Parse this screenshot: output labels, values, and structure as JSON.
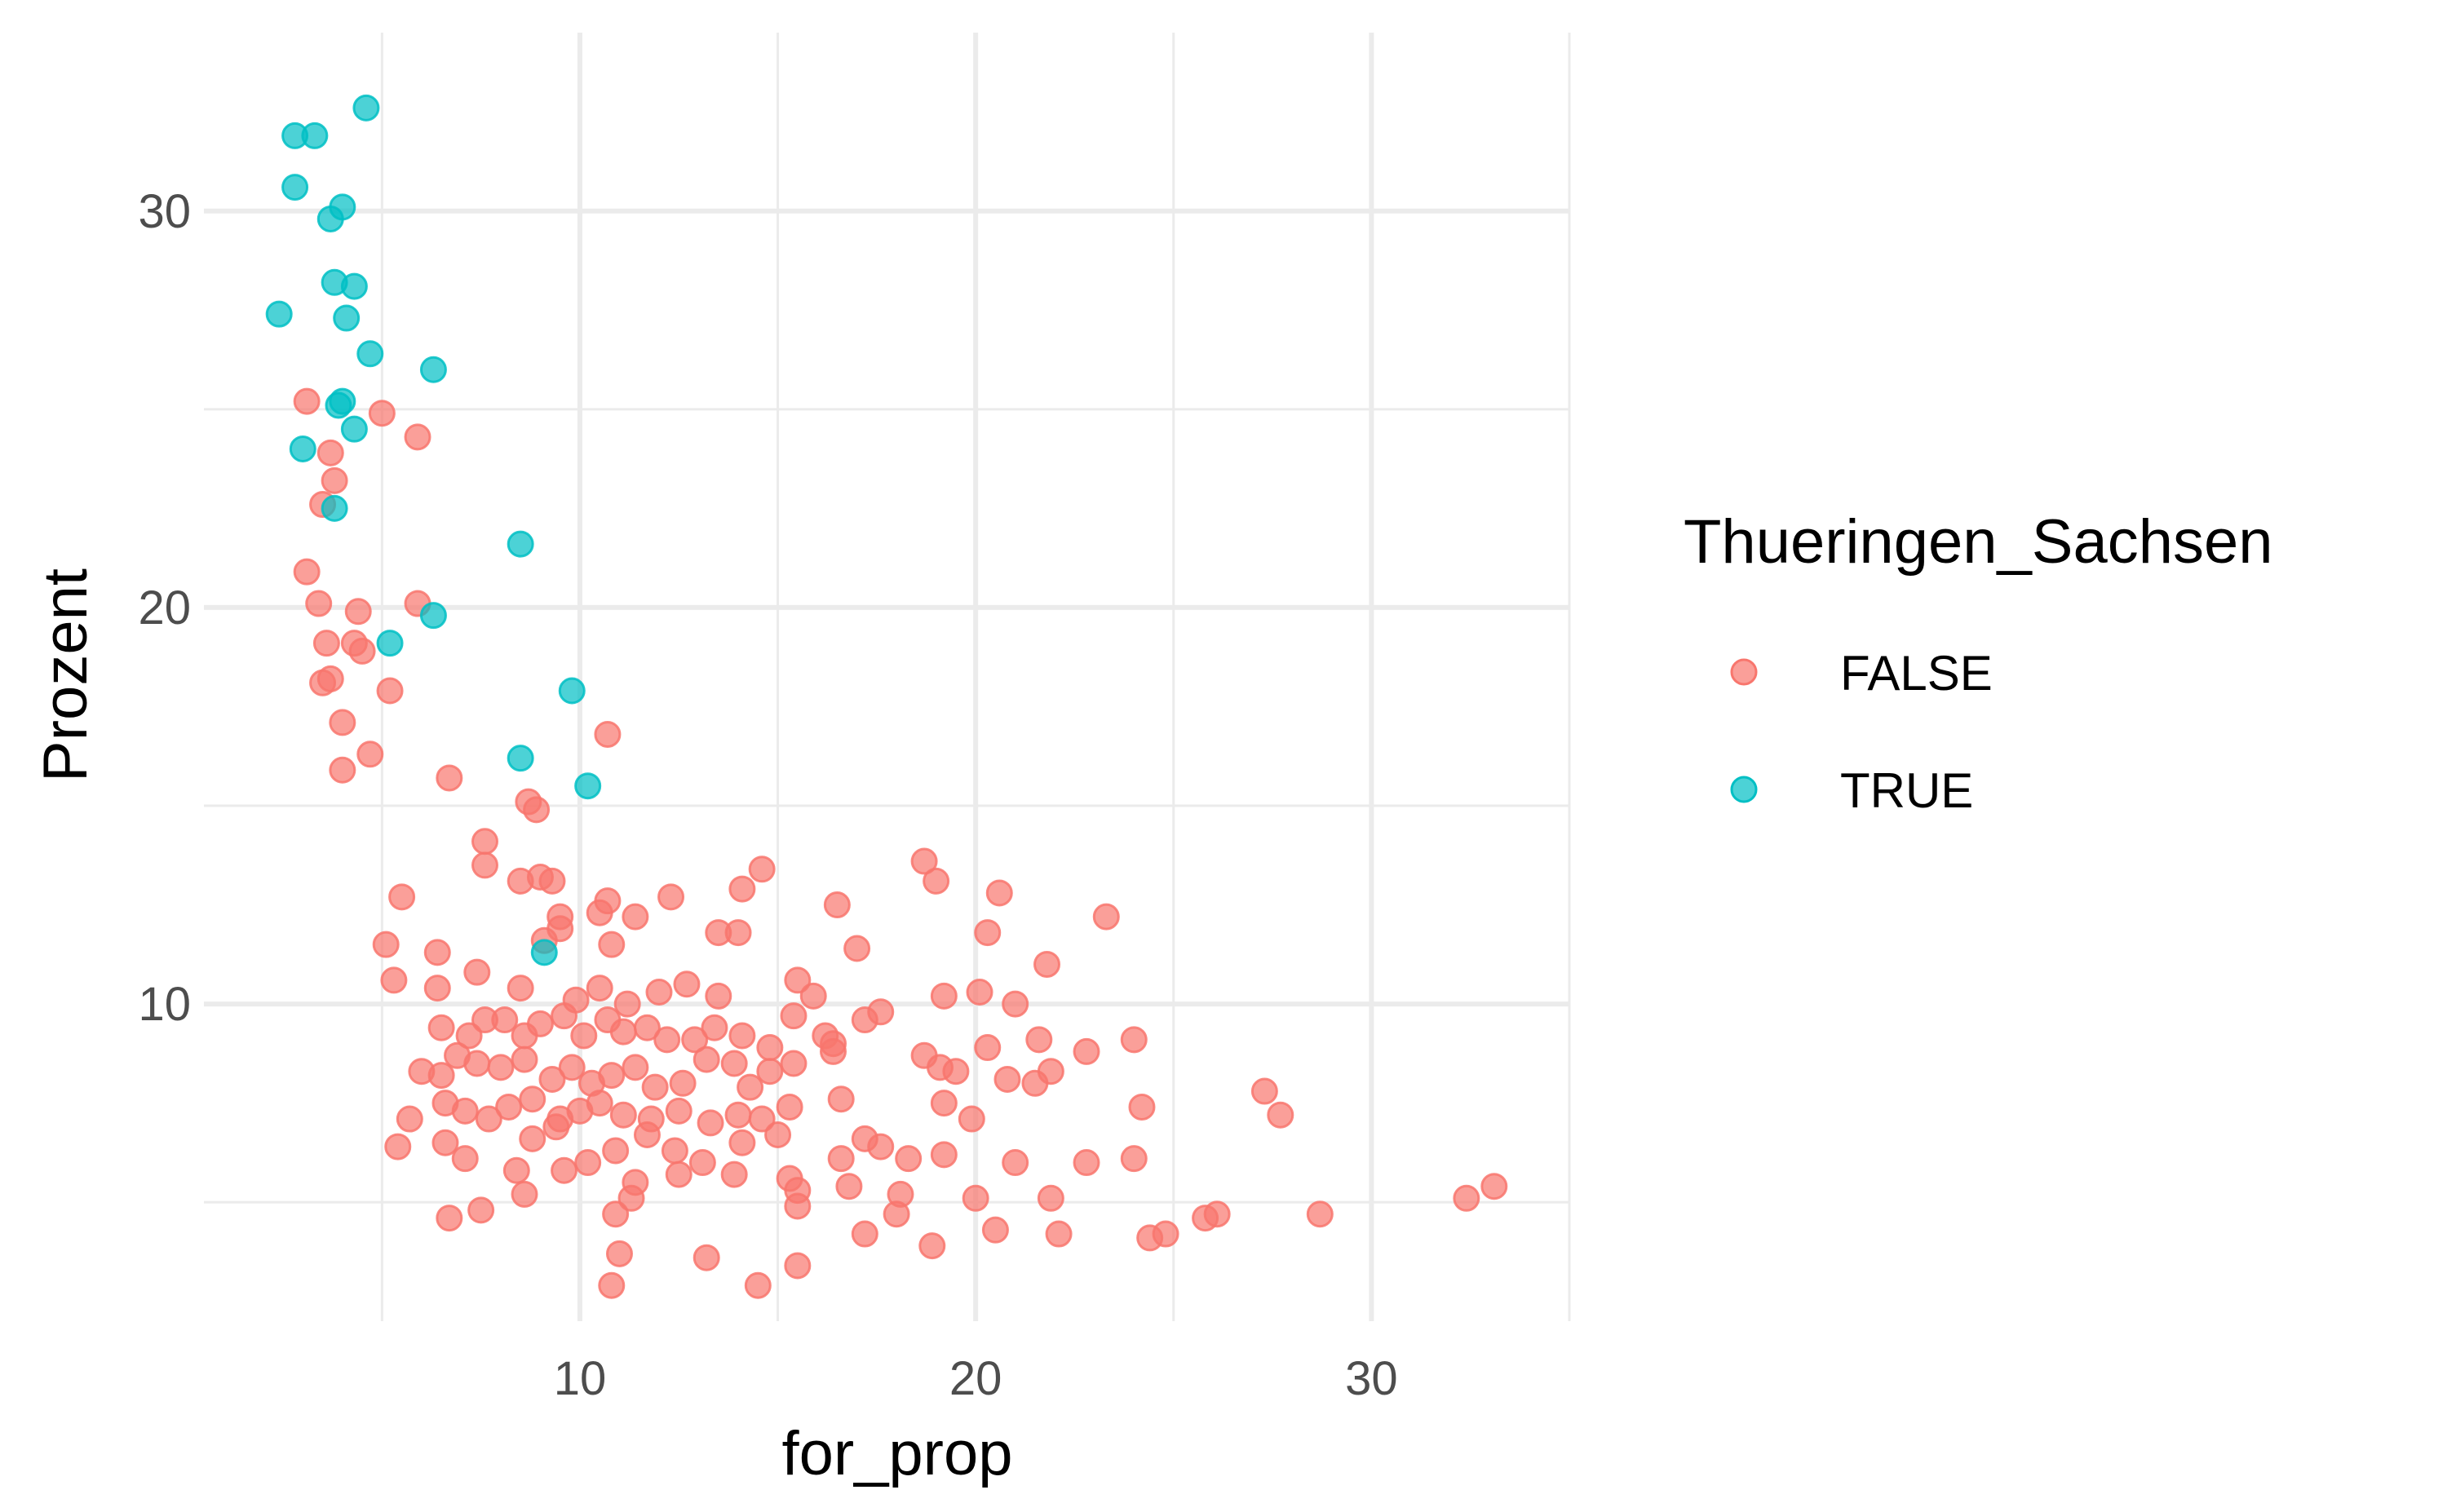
{
  "chart_data": {
    "type": "scatter",
    "xlabel": "for_prop",
    "ylabel": "Prozent",
    "xlim": [
      0.5,
      35
    ],
    "ylim": [
      2,
      34.5
    ],
    "x_ticks": [
      10,
      20,
      30
    ],
    "y_ticks": [
      10,
      20,
      30
    ],
    "x_tick_labels": [
      "10",
      "20",
      "30"
    ],
    "y_tick_labels": [
      "10",
      "20",
      "30"
    ],
    "grid": true,
    "legend": {
      "title": "Thueringen_Sachsen",
      "position": "right"
    },
    "series": [
      {
        "name": "FALSE",
        "color": "#F8766D",
        "points": [
          [
            3.1,
            25.2
          ],
          [
            3.7,
            23.9
          ],
          [
            3.8,
            23.2
          ],
          [
            3.5,
            22.6
          ],
          [
            5.0,
            24.9
          ],
          [
            5.9,
            24.3
          ],
          [
            3.1,
            20.9
          ],
          [
            3.4,
            20.1
          ],
          [
            3.6,
            19.1
          ],
          [
            3.5,
            18.1
          ],
          [
            3.7,
            18.2
          ],
          [
            4.4,
            19.9
          ],
          [
            4.3,
            19.1
          ],
          [
            4.5,
            18.9
          ],
          [
            5.9,
            20.1
          ],
          [
            4.0,
            17.1
          ],
          [
            4.0,
            15.9
          ],
          [
            4.7,
            16.3
          ],
          [
            5.2,
            17.9
          ],
          [
            10.7,
            16.8
          ],
          [
            6.7,
            15.7
          ],
          [
            8.7,
            15.1
          ],
          [
            8.9,
            14.9
          ],
          [
            7.6,
            14.1
          ],
          [
            7.6,
            13.5
          ],
          [
            8.5,
            13.1
          ],
          [
            9.0,
            13.2
          ],
          [
            9.3,
            13.1
          ],
          [
            5.5,
            12.7
          ],
          [
            10.7,
            12.6
          ],
          [
            10.5,
            12.3
          ],
          [
            11.4,
            12.2
          ],
          [
            12.3,
            12.7
          ],
          [
            9.5,
            12.2
          ],
          [
            14.1,
            12.9
          ],
          [
            14.6,
            13.4
          ],
          [
            16.5,
            12.5
          ],
          [
            18.7,
            13.6
          ],
          [
            19.0,
            13.1
          ],
          [
            20.6,
            12.8
          ],
          [
            23.3,
            12.2
          ],
          [
            5.1,
            11.5
          ],
          [
            6.4,
            11.3
          ],
          [
            9.1,
            11.6
          ],
          [
            9.5,
            11.9
          ],
          [
            10.8,
            11.5
          ],
          [
            13.5,
            11.8
          ],
          [
            14.0,
            11.8
          ],
          [
            17.0,
            11.4
          ],
          [
            20.3,
            11.8
          ],
          [
            21.8,
            11.0
          ],
          [
            5.3,
            10.6
          ],
          [
            6.4,
            10.4
          ],
          [
            7.4,
            10.8
          ],
          [
            8.5,
            10.4
          ],
          [
            9.9,
            10.1
          ],
          [
            10.5,
            10.4
          ],
          [
            11.2,
            10.0
          ],
          [
            12.0,
            10.3
          ],
          [
            12.7,
            10.5
          ],
          [
            13.5,
            10.2
          ],
          [
            15.5,
            10.6
          ],
          [
            15.9,
            10.2
          ],
          [
            19.2,
            10.2
          ],
          [
            20.1,
            10.3
          ],
          [
            21.0,
            10.0
          ],
          [
            6.5,
            9.4
          ],
          [
            7.2,
            9.2
          ],
          [
            7.6,
            9.6
          ],
          [
            8.1,
            9.6
          ],
          [
            8.6,
            9.2
          ],
          [
            9.0,
            9.5
          ],
          [
            9.6,
            9.7
          ],
          [
            10.1,
            9.2
          ],
          [
            10.7,
            9.6
          ],
          [
            11.1,
            9.3
          ],
          [
            11.7,
            9.4
          ],
          [
            12.2,
            9.1
          ],
          [
            12.9,
            9.1
          ],
          [
            13.4,
            9.4
          ],
          [
            14.1,
            9.2
          ],
          [
            14.8,
            8.9
          ],
          [
            15.4,
            9.7
          ],
          [
            16.2,
            9.2
          ],
          [
            16.4,
            9.0
          ],
          [
            17.2,
            9.6
          ],
          [
            17.6,
            9.8
          ],
          [
            20.3,
            8.9
          ],
          [
            21.6,
            9.1
          ],
          [
            22.8,
            8.8
          ],
          [
            24.0,
            9.1
          ],
          [
            6.0,
            8.3
          ],
          [
            6.5,
            8.2
          ],
          [
            6.9,
            8.7
          ],
          [
            7.4,
            8.5
          ],
          [
            8.0,
            8.4
          ],
          [
            8.6,
            8.6
          ],
          [
            9.3,
            8.1
          ],
          [
            9.8,
            8.4
          ],
          [
            10.3,
            8.0
          ],
          [
            10.8,
            8.2
          ],
          [
            11.4,
            8.4
          ],
          [
            11.9,
            7.9
          ],
          [
            12.6,
            8.0
          ],
          [
            13.2,
            8.6
          ],
          [
            13.9,
            8.5
          ],
          [
            14.3,
            7.9
          ],
          [
            14.8,
            8.3
          ],
          [
            15.4,
            8.5
          ],
          [
            16.4,
            8.8
          ],
          [
            18.7,
            8.7
          ],
          [
            19.1,
            8.4
          ],
          [
            19.5,
            8.3
          ],
          [
            20.8,
            8.1
          ],
          [
            21.5,
            8.0
          ],
          [
            21.9,
            8.3
          ],
          [
            5.7,
            7.1
          ],
          [
            6.6,
            7.5
          ],
          [
            7.1,
            7.3
          ],
          [
            7.7,
            7.1
          ],
          [
            8.2,
            7.4
          ],
          [
            8.8,
            7.6
          ],
          [
            9.5,
            7.1
          ],
          [
            10.0,
            7.3
          ],
          [
            10.5,
            7.5
          ],
          [
            11.1,
            7.2
          ],
          [
            11.8,
            7.1
          ],
          [
            12.5,
            7.3
          ],
          [
            13.3,
            7.0
          ],
          [
            14.0,
            7.2
          ],
          [
            14.6,
            7.1
          ],
          [
            15.3,
            7.4
          ],
          [
            16.6,
            7.6
          ],
          [
            17.2,
            6.6
          ],
          [
            17.6,
            6.4
          ],
          [
            19.2,
            7.5
          ],
          [
            19.9,
            7.1
          ],
          [
            24.2,
            7.4
          ],
          [
            27.3,
            7.8
          ],
          [
            27.7,
            7.2
          ],
          [
            5.4,
            6.4
          ],
          [
            6.6,
            6.5
          ],
          [
            7.1,
            6.1
          ],
          [
            8.8,
            6.6
          ],
          [
            9.4,
            6.9
          ],
          [
            10.2,
            6.0
          ],
          [
            10.9,
            6.3
          ],
          [
            11.7,
            6.7
          ],
          [
            12.4,
            6.3
          ],
          [
            13.1,
            6.0
          ],
          [
            14.1,
            6.5
          ],
          [
            15.0,
            6.7
          ],
          [
            16.6,
            6.1
          ],
          [
            18.3,
            6.1
          ],
          [
            19.2,
            6.2
          ],
          [
            21.0,
            6.0
          ],
          [
            22.8,
            6.0
          ],
          [
            24.0,
            6.1
          ],
          [
            8.4,
            5.8
          ],
          [
            9.6,
            5.8
          ],
          [
            11.4,
            5.5
          ],
          [
            12.5,
            5.7
          ],
          [
            13.9,
            5.7
          ],
          [
            15.3,
            5.6
          ],
          [
            15.5,
            5.3
          ],
          [
            16.8,
            5.4
          ],
          [
            18.1,
            5.2
          ],
          [
            20.0,
            5.1
          ],
          [
            21.9,
            5.1
          ],
          [
            6.7,
            4.6
          ],
          [
            7.5,
            4.8
          ],
          [
            8.6,
            5.2
          ],
          [
            10.9,
            4.7
          ],
          [
            11.3,
            5.1
          ],
          [
            15.5,
            4.9
          ],
          [
            17.2,
            4.2
          ],
          [
            18.0,
            4.7
          ],
          [
            18.9,
            3.9
          ],
          [
            20.5,
            4.3
          ],
          [
            22.1,
            4.2
          ],
          [
            24.4,
            4.1
          ],
          [
            24.8,
            4.2
          ],
          [
            25.8,
            4.6
          ],
          [
            26.1,
            4.7
          ],
          [
            28.7,
            4.7
          ],
          [
            32.4,
            5.1
          ],
          [
            33.1,
            5.4
          ],
          [
            11.0,
            3.7
          ],
          [
            10.8,
            2.9
          ],
          [
            13.2,
            3.6
          ],
          [
            14.5,
            2.9
          ],
          [
            15.5,
            3.4
          ]
        ]
      },
      {
        "name": "TRUE",
        "color": "#00BFC4",
        "points": [
          [
            2.8,
            31.9
          ],
          [
            3.3,
            31.9
          ],
          [
            4.6,
            32.6
          ],
          [
            2.8,
            30.6
          ],
          [
            3.7,
            29.8
          ],
          [
            4.0,
            30.1
          ],
          [
            3.8,
            28.2
          ],
          [
            4.3,
            28.1
          ],
          [
            2.4,
            27.4
          ],
          [
            4.1,
            27.3
          ],
          [
            4.7,
            26.4
          ],
          [
            6.3,
            26.0
          ],
          [
            3.9,
            25.1
          ],
          [
            4.0,
            25.2
          ],
          [
            3.0,
            24.0
          ],
          [
            4.3,
            24.5
          ],
          [
            3.8,
            22.5
          ],
          [
            8.5,
            21.6
          ],
          [
            6.3,
            19.8
          ],
          [
            5.2,
            19.1
          ],
          [
            9.8,
            17.9
          ],
          [
            8.5,
            16.2
          ],
          [
            10.2,
            15.5
          ],
          [
            9.1,
            11.3
          ]
        ]
      }
    ]
  }
}
